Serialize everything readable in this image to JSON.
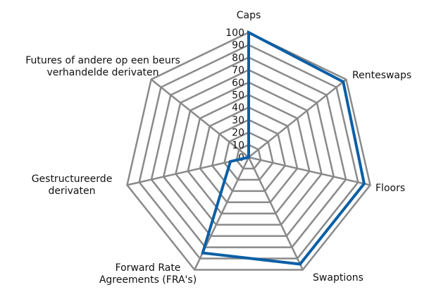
{
  "chart_data": {
    "type": "radar",
    "categories": [
      "Caps",
      "Renteswaps",
      "Floors",
      "Swaptions",
      "Forward Rate Agreements (FRA's)",
      "Gestructureerde derivaten",
      "Futures of andere op een beurs verhandelde derivaten"
    ],
    "series": [
      {
        "color": "#0b5fa5",
        "values": [
          100,
          97,
          95,
          95,
          85,
          15,
          0
        ]
      }
    ],
    "rlim": [
      0,
      100
    ],
    "rticks": [
      0,
      10,
      20,
      30,
      40,
      50,
      60,
      70,
      80,
      90,
      100
    ],
    "grid": true
  }
}
